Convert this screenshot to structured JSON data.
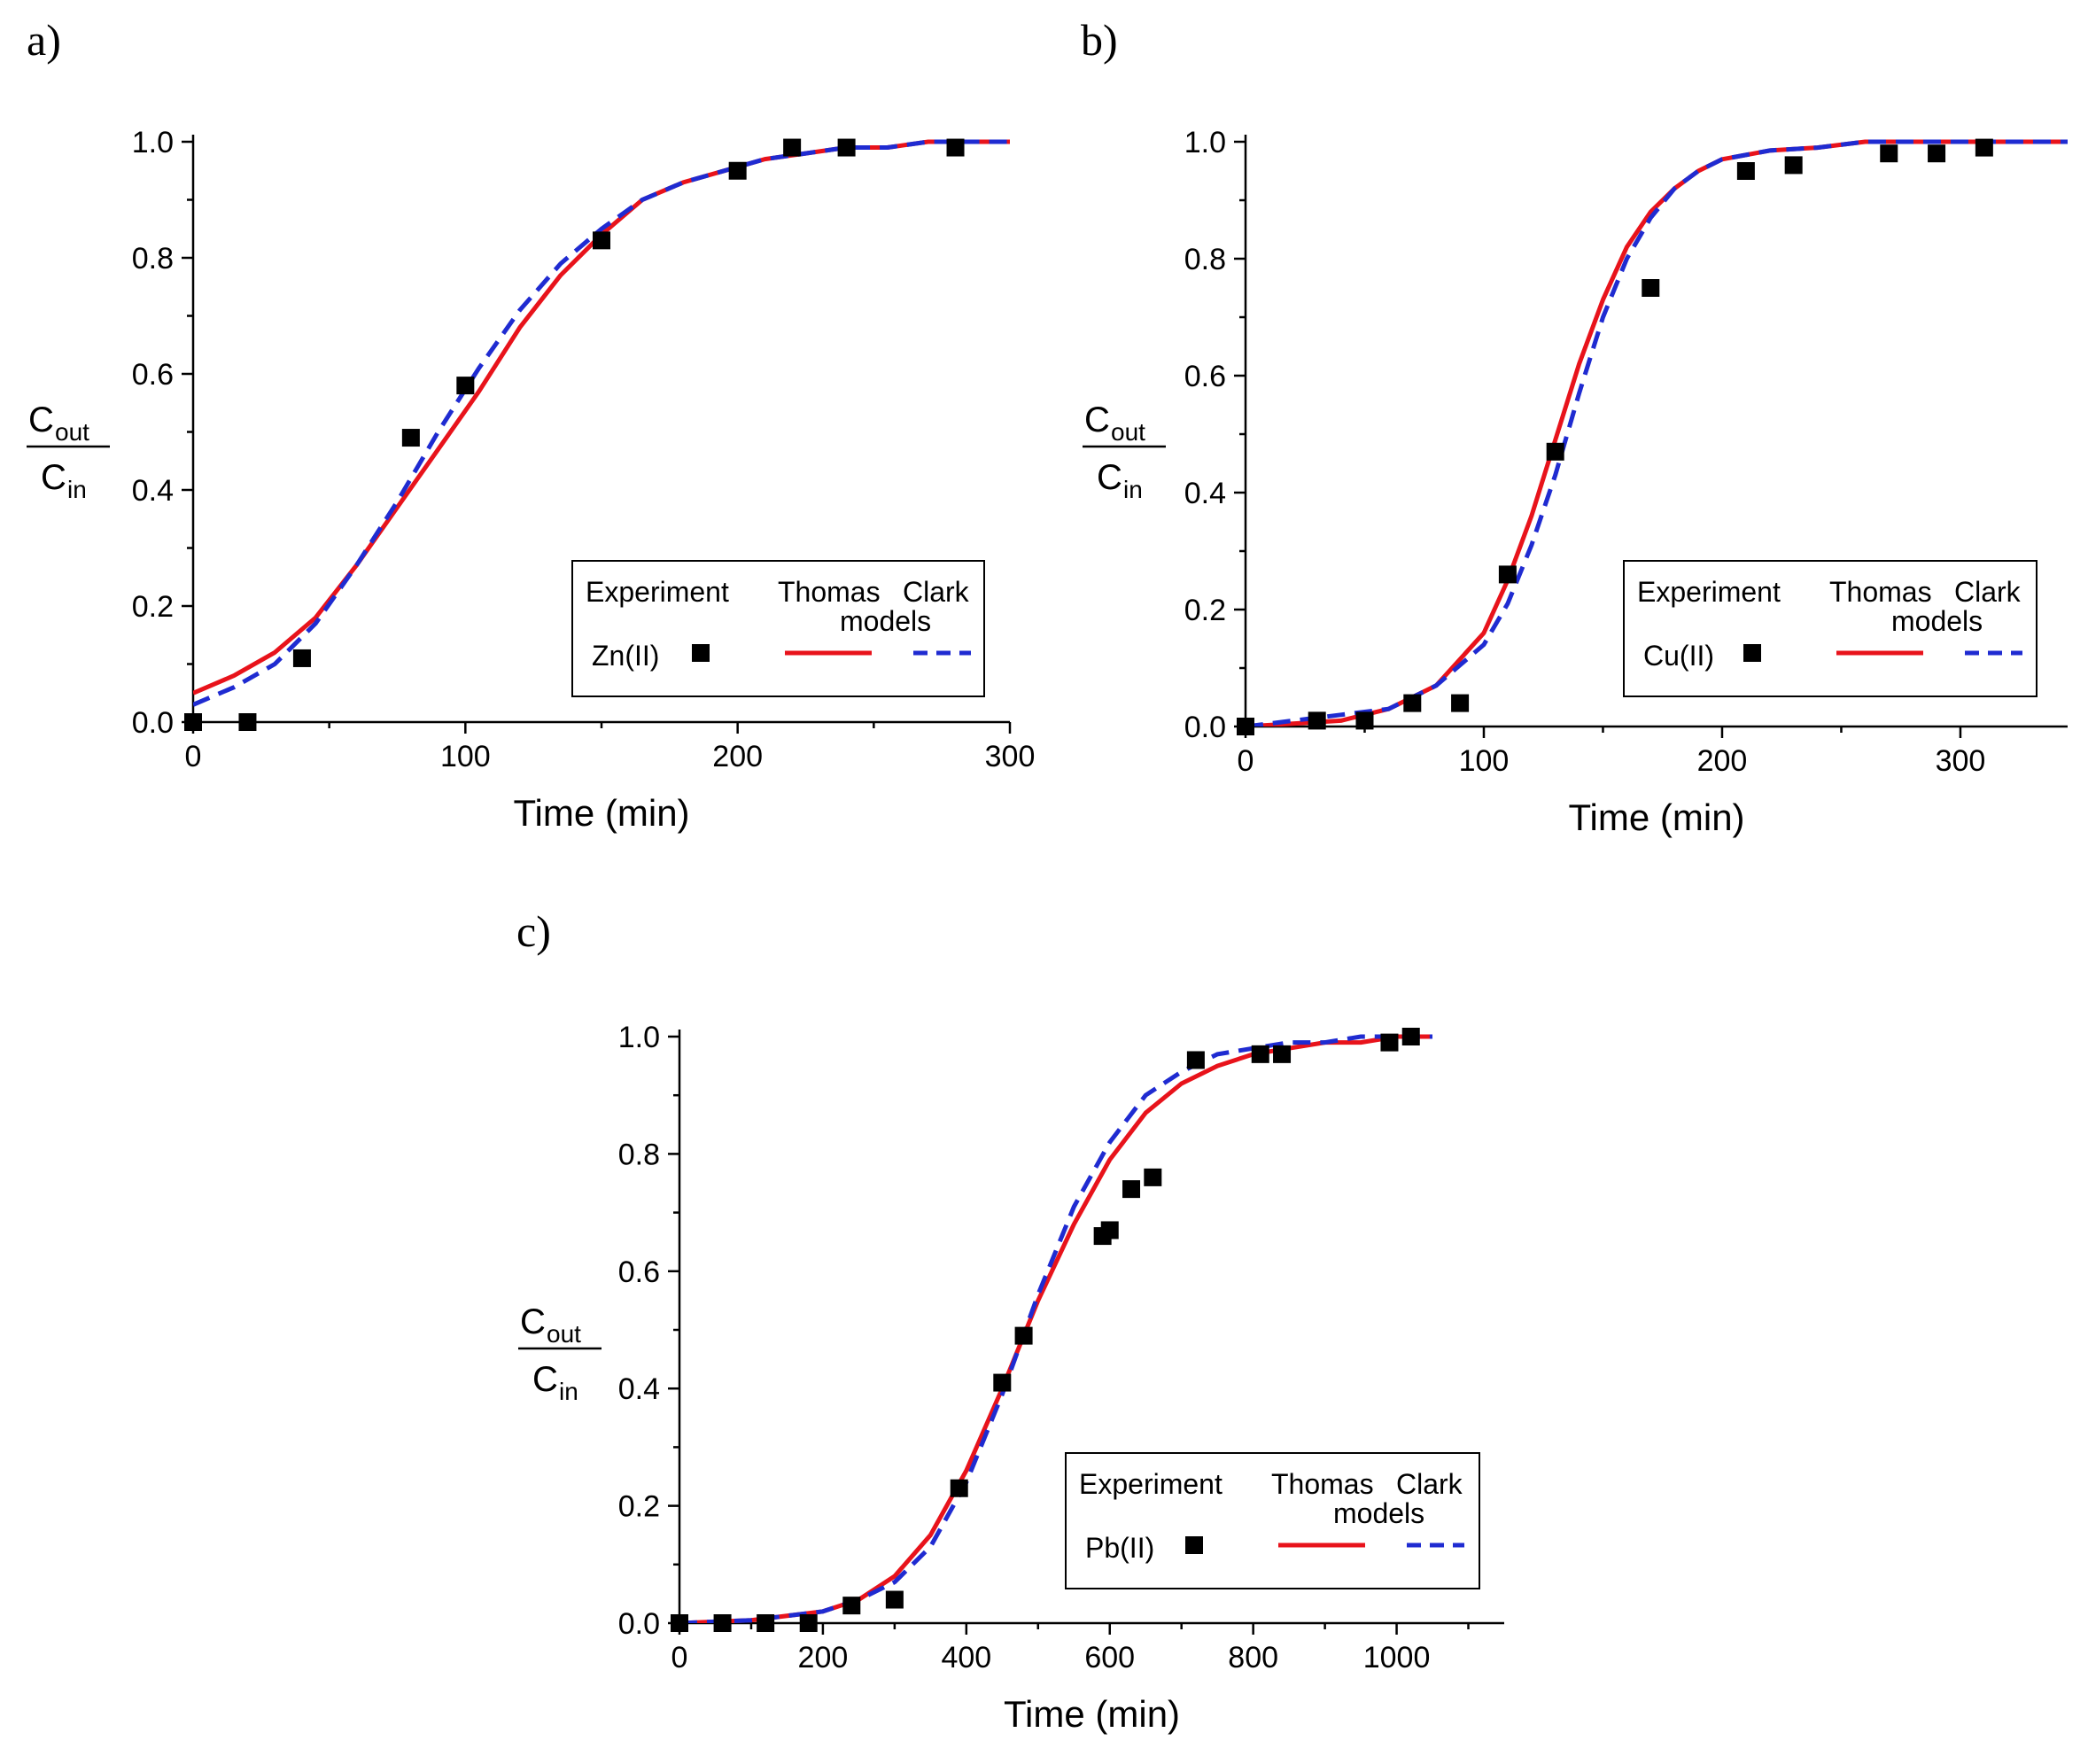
{
  "figure": {
    "background": "#ffffff",
    "colors": {
      "experiment": "#000000",
      "thomas": "#e8131b",
      "clark": "#1f2bd1",
      "axis": "#000000"
    }
  },
  "chart_data": [
    {
      "panel": "a)",
      "type": "scatter",
      "xlabel": "Time (min)",
      "ylabel": {
        "numerator": "C",
        "numerator_sub": "out",
        "denominator": "C",
        "denominator_sub": "in"
      },
      "xlim": [
        0,
        300
      ],
      "ylim": [
        0,
        1.0
      ],
      "xticks": [
        0,
        100,
        200,
        300
      ],
      "yticks": [
        0.0,
        0.2,
        0.4,
        0.6,
        0.8,
        1.0
      ],
      "xtick_labels": [
        "0",
        "100",
        "200",
        "300"
      ],
      "ytick_labels": [
        "0.0",
        "0.2",
        "0.4",
        "0.6",
        "0.8",
        "1.0"
      ],
      "legend": {
        "experiment_header": "Experiment",
        "thomas_header": "Thomas",
        "clark_header": "Clark",
        "models_header": "models",
        "series_label": "Zn(II)"
      },
      "experiment": {
        "x": [
          0,
          20,
          40,
          80,
          100,
          150,
          200,
          220,
          240,
          280
        ],
        "y": [
          0.0,
          0.0,
          0.11,
          0.49,
          0.58,
          0.83,
          0.95,
          0.99,
          0.99,
          0.99
        ]
      },
      "thomas": {
        "x": [
          0,
          15,
          30,
          45,
          60,
          75,
          90,
          105,
          120,
          135,
          150,
          165,
          180,
          195,
          210,
          225,
          240,
          255,
          270,
          285,
          300
        ],
        "y": [
          0.05,
          0.08,
          0.12,
          0.18,
          0.27,
          0.37,
          0.47,
          0.57,
          0.68,
          0.77,
          0.84,
          0.9,
          0.93,
          0.95,
          0.97,
          0.98,
          0.99,
          0.99,
          1.0,
          1.0,
          1.0
        ]
      },
      "clark": {
        "x": [
          0,
          15,
          30,
          45,
          60,
          75,
          90,
          105,
          120,
          135,
          150,
          165,
          180,
          195,
          210,
          225,
          240,
          255,
          270,
          285,
          300
        ],
        "y": [
          0.03,
          0.06,
          0.1,
          0.17,
          0.27,
          0.38,
          0.5,
          0.61,
          0.71,
          0.79,
          0.85,
          0.9,
          0.93,
          0.95,
          0.97,
          0.98,
          0.99,
          0.99,
          1.0,
          1.0,
          1.0
        ]
      }
    },
    {
      "panel": "b)",
      "type": "scatter",
      "xlabel": "Time (min)",
      "ylabel": {
        "numerator": "C",
        "numerator_sub": "out",
        "denominator": "C",
        "denominator_sub": "in"
      },
      "xlim": [
        0,
        345
      ],
      "ylim": [
        0,
        1.0
      ],
      "xticks": [
        0,
        100,
        200,
        300
      ],
      "yticks": [
        0.0,
        0.2,
        0.4,
        0.6,
        0.8,
        1.0
      ],
      "xtick_labels": [
        "0",
        "100",
        "200",
        "300"
      ],
      "ytick_labels": [
        "0.0",
        "0.2",
        "0.4",
        "0.6",
        "0.8",
        "1.0"
      ],
      "legend": {
        "experiment_header": "Experiment",
        "thomas_header": "Thomas",
        "clark_header": "Clark",
        "models_header": "models",
        "series_label": "Cu(II)"
      },
      "experiment": {
        "x": [
          0,
          30,
          50,
          70,
          90,
          110,
          130,
          170,
          210,
          230,
          270,
          290,
          310
        ],
        "y": [
          0.0,
          0.01,
          0.01,
          0.04,
          0.04,
          0.26,
          0.47,
          0.75,
          0.95,
          0.96,
          0.98,
          0.98,
          0.99
        ]
      },
      "thomas": {
        "x": [
          0,
          20,
          40,
          60,
          80,
          100,
          110,
          120,
          130,
          140,
          150,
          160,
          170,
          180,
          190,
          200,
          220,
          240,
          260,
          280,
          300,
          320,
          345
        ],
        "y": [
          0.0,
          0.005,
          0.01,
          0.03,
          0.07,
          0.16,
          0.25,
          0.36,
          0.49,
          0.62,
          0.73,
          0.82,
          0.88,
          0.92,
          0.95,
          0.97,
          0.985,
          0.99,
          1.0,
          1.0,
          1.0,
          1.0,
          1.0
        ]
      },
      "clark": {
        "x": [
          0,
          20,
          40,
          60,
          80,
          100,
          110,
          120,
          130,
          140,
          150,
          160,
          170,
          180,
          190,
          200,
          220,
          240,
          260,
          280,
          300,
          320,
          345
        ],
        "y": [
          0.0,
          0.01,
          0.02,
          0.03,
          0.07,
          0.14,
          0.21,
          0.31,
          0.43,
          0.57,
          0.7,
          0.8,
          0.87,
          0.92,
          0.95,
          0.97,
          0.985,
          0.99,
          1.0,
          1.0,
          1.0,
          1.0,
          1.0
        ]
      }
    },
    {
      "panel": "c)",
      "type": "scatter",
      "xlabel": "Time (min)",
      "ylabel": {
        "numerator": "C",
        "numerator_sub": "out",
        "denominator": "C",
        "denominator_sub": "in"
      },
      "xlim": [
        0,
        1150
      ],
      "ylim": [
        0,
        1.0
      ],
      "xticks": [
        0,
        200,
        400,
        600,
        800,
        1000
      ],
      "yticks": [
        0.0,
        0.2,
        0.4,
        0.6,
        0.8,
        1.0
      ],
      "xtick_labels": [
        "0",
        "200",
        "400",
        "600",
        "800",
        "1000"
      ],
      "ytick_labels": [
        "0.0",
        "0.2",
        "0.4",
        "0.6",
        "0.8",
        "1.0"
      ],
      "legend": {
        "experiment_header": "Experiment",
        "thomas_header": "Thomas",
        "clark_header": "Clark",
        "models_header": "models",
        "series_label": "Pb(II)"
      },
      "experiment": {
        "x": [
          0,
          60,
          120,
          180,
          240,
          300,
          390,
          450,
          480,
          590,
          600,
          630,
          660,
          720,
          810,
          840,
          990,
          1020
        ],
        "y": [
          0.0,
          0.0,
          0.0,
          0.0,
          0.03,
          0.04,
          0.23,
          0.41,
          0.49,
          0.66,
          0.67,
          0.74,
          0.76,
          0.96,
          0.97,
          0.97,
          0.99,
          1.0
        ]
      },
      "thomas": {
        "x": [
          0,
          100,
          200,
          250,
          300,
          350,
          400,
          450,
          500,
          550,
          600,
          650,
          700,
          750,
          800,
          850,
          900,
          950,
          1000,
          1050
        ],
        "y": [
          0.0,
          0.005,
          0.02,
          0.04,
          0.08,
          0.15,
          0.26,
          0.4,
          0.55,
          0.68,
          0.79,
          0.87,
          0.92,
          0.95,
          0.97,
          0.98,
          0.99,
          0.99,
          1.0,
          1.0
        ]
      },
      "clark": {
        "x": [
          0,
          100,
          200,
          250,
          300,
          350,
          400,
          450,
          500,
          550,
          600,
          650,
          700,
          750,
          800,
          850,
          900,
          950,
          1000,
          1050
        ],
        "y": [
          0.0,
          0.005,
          0.02,
          0.04,
          0.07,
          0.13,
          0.24,
          0.39,
          0.56,
          0.71,
          0.82,
          0.9,
          0.94,
          0.97,
          0.98,
          0.99,
          0.99,
          1.0,
          1.0,
          1.0
        ]
      }
    }
  ]
}
